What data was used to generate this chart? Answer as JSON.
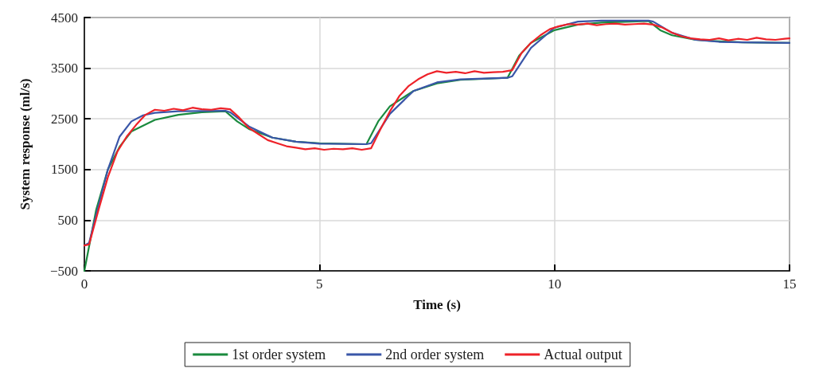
{
  "chart_data": {
    "type": "line",
    "xlabel": "Time (s)",
    "ylabel": "System response (ml/s)",
    "xlim": [
      0,
      15
    ],
    "xticks": [
      0,
      5,
      10,
      15
    ],
    "ylim": [
      -500,
      4500
    ],
    "yticks": [
      {
        "value": -500,
        "label": "−500"
      },
      500,
      1500,
      2500,
      3500,
      4500
    ],
    "grid": true,
    "legend": "bottom",
    "line_style": "solid",
    "series": [
      {
        "name": "1st order system",
        "color": "#1a8a3e",
        "x": [
          0,
          0.25,
          0.5,
          0.75,
          1,
          1.5,
          2,
          2.5,
          3,
          3.25,
          3.5,
          4,
          4.5,
          5,
          6,
          6.25,
          6.5,
          7,
          7.5,
          8,
          9,
          9.25,
          9.5,
          10,
          10.5,
          11,
          12,
          12.25,
          12.5,
          13,
          13.5,
          14,
          15
        ],
        "values": [
          -500,
          700,
          1500,
          1950,
          2250,
          2480,
          2580,
          2630,
          2650,
          2450,
          2300,
          2130,
          2050,
          2020,
          2000,
          2450,
          2750,
          3050,
          3200,
          3270,
          3310,
          3750,
          4000,
          4250,
          4360,
          4400,
          4430,
          4250,
          4150,
          4060,
          4030,
          4010,
          4000
        ]
      },
      {
        "name": "2nd order system",
        "color": "#3a56a8",
        "x": [
          0,
          0.1,
          0.25,
          0.5,
          0.75,
          1,
          1.25,
          1.5,
          2,
          3,
          3.1,
          3.5,
          4,
          4.5,
          5,
          6,
          6.1,
          6.5,
          7,
          7.5,
          8,
          9,
          9.1,
          9.5,
          10,
          10.5,
          11,
          12,
          12.1,
          12.5,
          13,
          13.5,
          14,
          15
        ],
        "values": [
          0,
          50,
          600,
          1500,
          2150,
          2450,
          2570,
          2620,
          2650,
          2660,
          2630,
          2350,
          2130,
          2050,
          2010,
          2000,
          2020,
          2600,
          3050,
          3220,
          3280,
          3310,
          3340,
          3900,
          4300,
          4420,
          4440,
          4440,
          4420,
          4200,
          4060,
          4020,
          4010,
          4000
        ]
      },
      {
        "name": "Actual output",
        "color": "#ee2229",
        "x": [
          0,
          0.1,
          0.3,
          0.5,
          0.7,
          0.9,
          1.1,
          1.3,
          1.5,
          1.7,
          1.9,
          2.1,
          2.3,
          2.5,
          2.7,
          2.9,
          3.1,
          3.3,
          3.5,
          3.7,
          3.9,
          4.1,
          4.3,
          4.5,
          4.7,
          4.9,
          5.1,
          5.3,
          5.5,
          5.7,
          5.9,
          6.1,
          6.3,
          6.5,
          6.7,
          6.9,
          7.1,
          7.3,
          7.5,
          7.7,
          7.9,
          8.1,
          8.3,
          8.5,
          8.7,
          8.9,
          9.1,
          9.3,
          9.5,
          9.7,
          9.9,
          10.1,
          10.3,
          10.5,
          10.7,
          10.9,
          11.1,
          11.3,
          11.5,
          11.7,
          11.9,
          12.1,
          12.3,
          12.5,
          12.7,
          12.9,
          13.1,
          13.3,
          13.5,
          13.7,
          13.9,
          14.1,
          14.3,
          14.5,
          14.7,
          14.9,
          15
        ],
        "values": [
          0,
          20,
          700,
          1350,
          1850,
          2150,
          2380,
          2580,
          2680,
          2660,
          2700,
          2670,
          2720,
          2690,
          2680,
          2710,
          2690,
          2520,
          2320,
          2200,
          2080,
          2020,
          1960,
          1930,
          1900,
          1920,
          1890,
          1910,
          1900,
          1920,
          1890,
          1920,
          2300,
          2650,
          2950,
          3150,
          3280,
          3380,
          3440,
          3410,
          3430,
          3400,
          3440,
          3410,
          3420,
          3430,
          3460,
          3800,
          4000,
          4150,
          4270,
          4330,
          4370,
          4360,
          4380,
          4350,
          4370,
          4380,
          4360,
          4370,
          4380,
          4360,
          4300,
          4200,
          4130,
          4090,
          4070,
          4060,
          4090,
          4050,
          4080,
          4060,
          4100,
          4070,
          4060,
          4080,
          4090
        ]
      }
    ]
  }
}
